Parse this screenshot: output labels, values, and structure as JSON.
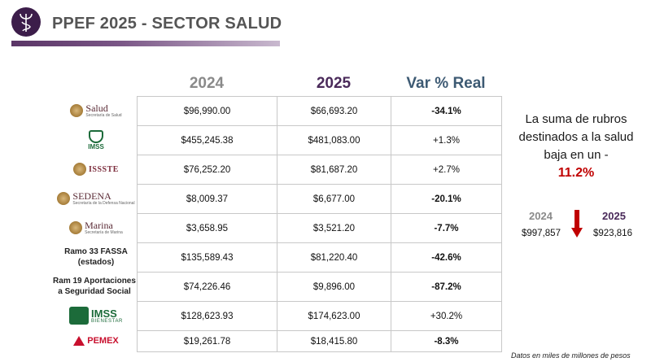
{
  "header": {
    "title": "PPEF 2025 - SECTOR SALUD",
    "logo_icon": "caduceus-icon",
    "accent_color": "#3c1d4a"
  },
  "table": {
    "columns": [
      "2024",
      "2025",
      "Var % Real"
    ],
    "rows": [
      {
        "label": "Salud",
        "label_sub": "Secretaría de Salud",
        "v2024": "$96,990.00",
        "v2025": "$66,693.20",
        "var": "-34.1%"
      },
      {
        "label": "IMSS",
        "v2024": "$455,245.38",
        "v2025": "$481,083.00",
        "var": "+1.3%"
      },
      {
        "label": "ISSSTE",
        "v2024": "$76,252.20",
        "v2025": "$81,687.20",
        "var": "+2.7%"
      },
      {
        "label": "SEDENA",
        "label_sub": "Secretaría de la Defensa Nacional",
        "v2024": "$8,009.37",
        "v2025": "$6,677.00",
        "var": "-20.1%"
      },
      {
        "label": "Marina",
        "label_sub": "Secretaría de Marina",
        "v2024": "$3,658.95",
        "v2025": "$3,521.20",
        "var": "-7.7%"
      },
      {
        "label": "Ramo 33 FASSA (estados)",
        "v2024": "$135,589.43",
        "v2025": "$81,220.40",
        "var": "-42.6%"
      },
      {
        "label": "Ram 19 Aportaciones a Seguridad Social",
        "v2024": "$74,226.46",
        "v2025": "$9,896.00",
        "var": "-87.2%"
      },
      {
        "label": "IMSS",
        "label_sub": "BIENESTAR",
        "v2024": "$128,623.93",
        "v2025": "$174,623.00",
        "var": "+30.2%"
      },
      {
        "label": "PEMEX",
        "v2024": "$19,261.78",
        "v2025": "$18,415.80",
        "var": "-8.3%"
      }
    ]
  },
  "summary": {
    "text": "La suma de rubros destinados a la salud baja en un -",
    "percent": "11.2%",
    "year_2024": "2024",
    "year_2025": "2025",
    "total_2024": "$997,857",
    "total_2025": "$923,816",
    "arrow_icon": "down-arrow-icon"
  },
  "footnote": "Datos en miles de millones de pesos",
  "colors": {
    "negative": "#c00000",
    "year_2024": "#8a8a8a",
    "year_2025": "#4a2a5a",
    "var_header": "#3d5a73"
  }
}
